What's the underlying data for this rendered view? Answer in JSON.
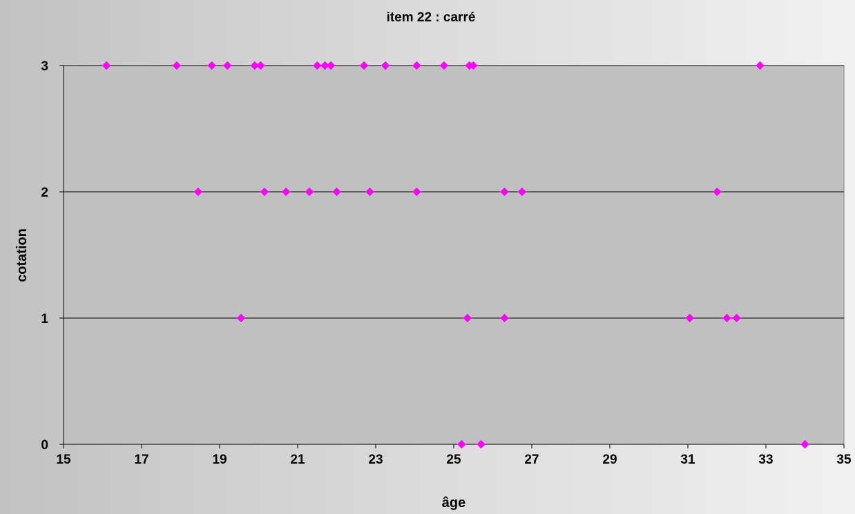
{
  "chart_data": {
    "type": "scatter",
    "title": "item 22 : carré",
    "xlabel": "âge",
    "ylabel": "cotation",
    "xlim": [
      15,
      35
    ],
    "ylim": [
      0,
      3
    ],
    "x_ticks": [
      "15",
      "17",
      "19",
      "21",
      "23",
      "25",
      "27",
      "29",
      "31",
      "33",
      "35"
    ],
    "y_ticks": [
      "0",
      "1",
      "2",
      "3"
    ],
    "grid": "horizontal",
    "colors": {
      "plot_area": "#c0c0c0",
      "marker": "#ff00ff",
      "gridline": "#000000"
    },
    "points": [
      {
        "x": 16.1,
        "y": 3
      },
      {
        "x": 17.9,
        "y": 3
      },
      {
        "x": 18.8,
        "y": 3
      },
      {
        "x": 19.2,
        "y": 3
      },
      {
        "x": 19.9,
        "y": 3
      },
      {
        "x": 20.05,
        "y": 3
      },
      {
        "x": 21.5,
        "y": 3
      },
      {
        "x": 21.7,
        "y": 3
      },
      {
        "x": 21.85,
        "y": 3
      },
      {
        "x": 22.7,
        "y": 3
      },
      {
        "x": 23.25,
        "y": 3
      },
      {
        "x": 24.05,
        "y": 3
      },
      {
        "x": 24.75,
        "y": 3
      },
      {
        "x": 25.4,
        "y": 3
      },
      {
        "x": 25.5,
        "y": 3
      },
      {
        "x": 32.85,
        "y": 3
      },
      {
        "x": 18.45,
        "y": 2
      },
      {
        "x": 20.15,
        "y": 2
      },
      {
        "x": 20.7,
        "y": 2
      },
      {
        "x": 21.3,
        "y": 2
      },
      {
        "x": 22.0,
        "y": 2
      },
      {
        "x": 22.85,
        "y": 2
      },
      {
        "x": 24.05,
        "y": 2
      },
      {
        "x": 26.3,
        "y": 2
      },
      {
        "x": 26.75,
        "y": 2
      },
      {
        "x": 31.75,
        "y": 2
      },
      {
        "x": 19.55,
        "y": 1
      },
      {
        "x": 25.35,
        "y": 1
      },
      {
        "x": 26.3,
        "y": 1
      },
      {
        "x": 31.05,
        "y": 1
      },
      {
        "x": 32.0,
        "y": 1
      },
      {
        "x": 32.25,
        "y": 1
      },
      {
        "x": 25.2,
        "y": 0
      },
      {
        "x": 25.7,
        "y": 0
      },
      {
        "x": 34.0,
        "y": 0
      }
    ]
  }
}
